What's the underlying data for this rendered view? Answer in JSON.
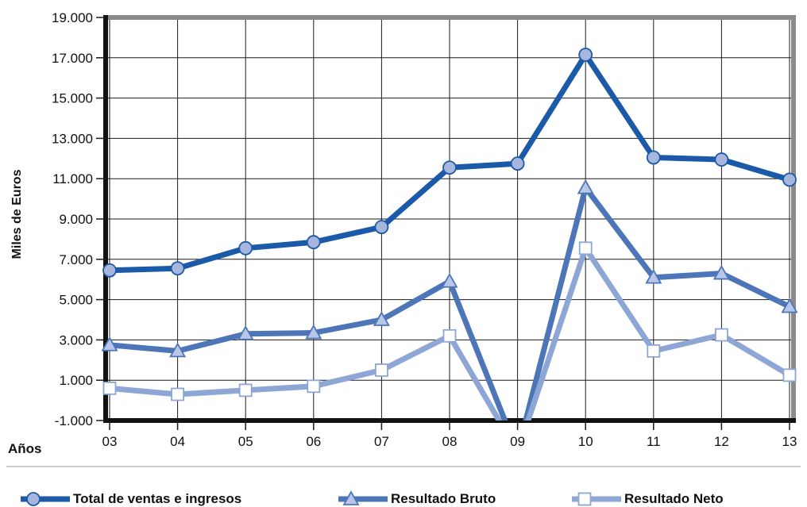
{
  "chart_data": {
    "type": "line",
    "ylabel": "Miles de Euros",
    "xlabel": "Años",
    "categories": [
      "03",
      "04",
      "05",
      "06",
      "07",
      "08",
      "09",
      "10",
      "11",
      "12",
      "13"
    ],
    "ylim": [
      -1000,
      19000
    ],
    "yticks": [
      -1000,
      1000,
      3000,
      5000,
      7000,
      9000,
      11000,
      13000,
      15000,
      17000,
      19000
    ],
    "ytick_labels": [
      "-1.000",
      "1.000",
      "3.000",
      "5.000",
      "7.000",
      "9.000",
      "11.000",
      "13.000",
      "15.000",
      "17.000",
      "19.000"
    ],
    "grid": true,
    "legend_position": "bottom",
    "series": [
      {
        "name": "Total de ventas e ingresos",
        "color": "#1a5aa8",
        "marker": "circle",
        "values": [
          6450,
          6550,
          7550,
          7850,
          8600,
          11550,
          11750,
          17150,
          12050,
          11950,
          10950
        ]
      },
      {
        "name": "Resultado Bruto",
        "color": "#4d76b8",
        "marker": "triangle",
        "values": [
          2750,
          2450,
          3300,
          3350,
          4000,
          5900,
          null,
          10550,
          6100,
          6300,
          4650
        ]
      },
      {
        "name": "Resultado Neto",
        "color": "#8ea6d6",
        "marker": "square",
        "values": [
          600,
          300,
          500,
          700,
          1500,
          3200,
          null,
          7550,
          2450,
          3250,
          1250
        ]
      }
    ]
  }
}
